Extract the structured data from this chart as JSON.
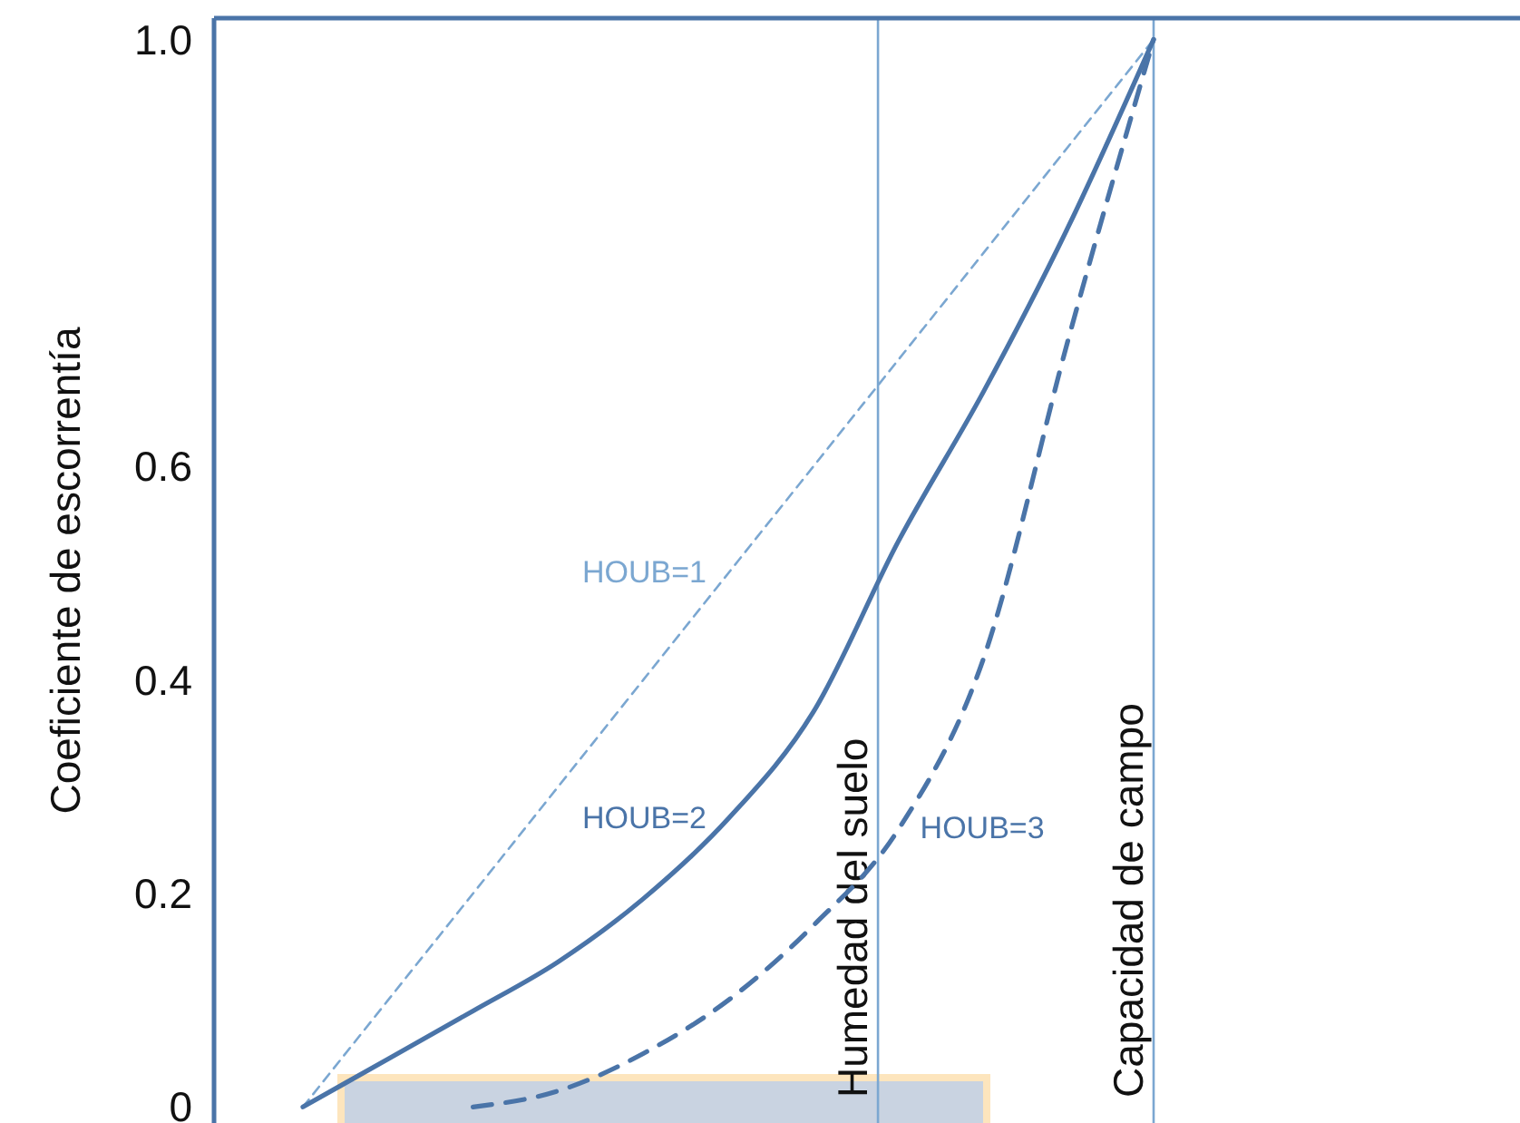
{
  "chart_data": {
    "type": "line",
    "ylabel": "Coeficiente de escorrentía",
    "categories": [
      null,
      null,
      null,
      null,
      null,
      null,
      null,
      null,
      null,
      null,
      null,
      null,
      null,
      null,
      null
    ],
    "ylim": [
      -0.015,
      1.02
    ],
    "yticks": [
      0,
      0.2,
      0.4,
      0.6,
      {
        "value": 1,
        "label": "1.0"
      }
    ],
    "tick_labels": "y",
    "grid": false,
    "marker": "none",
    "series": [
      {
        "name": "HOUB=1",
        "color": "#7ba7d1",
        "line_style": "dashed",
        "values": [
          0,
          0.1,
          0.2,
          0.3,
          0.4,
          0.5,
          0.6,
          0.7,
          0.8,
          0.9,
          1,
          null,
          null,
          null,
          null
        ]
      },
      {
        "name": "HOUB=2",
        "color": "#4a74a8",
        "line_style": "solid",
        "values": [
          0,
          0.045,
          0.09,
          0.136,
          0.195,
          0.27,
          0.37,
          0.53,
          0.67,
          0.825,
          1,
          null,
          null,
          null,
          null
        ]
      },
      {
        "name": "HOUB=3",
        "color": "#4a74a8",
        "line_style": "dashed",
        "values": [
          null,
          null,
          0,
          0.015,
          0.05,
          0.1,
          0.17,
          0.26,
          0.42,
          0.72,
          1,
          null,
          null,
          null,
          null
        ]
      }
    ],
    "annotations": [
      "Humedad del suelo",
      "Capacidad de campo"
    ]
  }
}
